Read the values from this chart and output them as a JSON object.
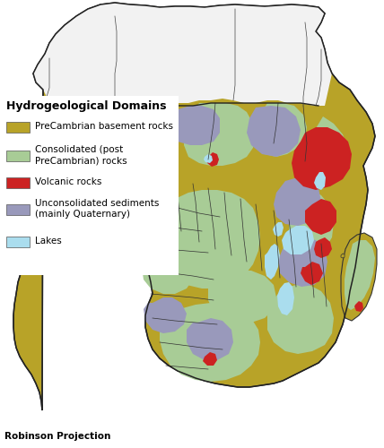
{
  "title": "Hydrogeological Domains",
  "legend_items": [
    {
      "label": "PreCambrian basement rocks",
      "color": "#b8a328"
    },
    {
      "label": "Consolidated (post\nPreCambrian) rocks",
      "color": "#a8cc96"
    },
    {
      "label": "Volcanic rocks",
      "color": "#cc2222"
    },
    {
      "label": "Unconsolidated sediments\n(mainly Quaternary)",
      "color": "#9999bb"
    },
    {
      "label": "Lakes",
      "color": "#aaddee"
    }
  ],
  "projection_label": "Robinson Projection",
  "background_color": "#ffffff",
  "legend_title_fontsize": 9,
  "legend_label_fontsize": 7.5,
  "projection_fontsize": 7.5,
  "north_africa_color": "#f0f0f0",
  "border_color": "#333333",
  "country_border_color": "#444444"
}
